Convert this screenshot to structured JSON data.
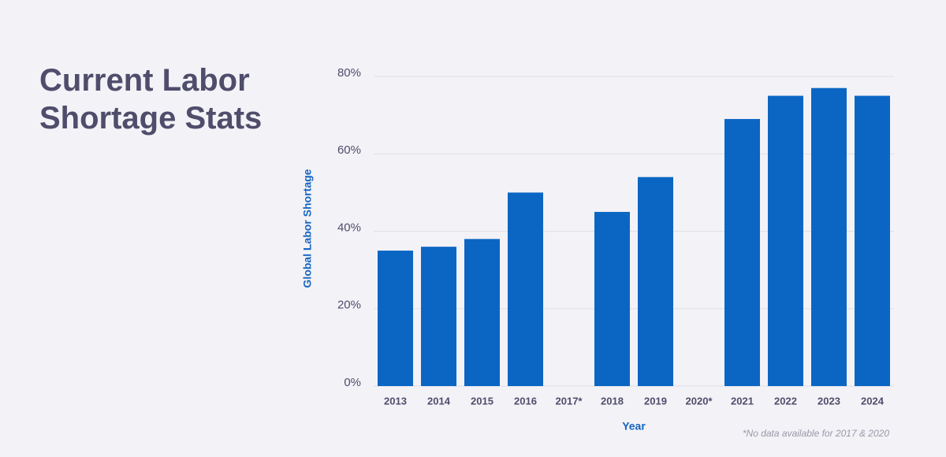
{
  "chart_data": {
    "type": "bar",
    "title": "Current Labor Shortage Stats",
    "x_label": "Year",
    "y_label": "Global Labor Shortage",
    "note": "*No data available for 2017 & 2020",
    "categories": [
      "2013",
      "2014",
      "2015",
      "2016",
      "2017*",
      "2018",
      "2019",
      "2020*",
      "2021",
      "2022",
      "2023",
      "2024"
    ],
    "values": [
      35,
      36,
      38,
      50,
      null,
      45,
      54,
      null,
      69,
      75,
      77,
      75
    ],
    "color": "#0b66c3",
    "ylim": [
      0,
      80
    ],
    "yticks": [
      {
        "value": 0,
        "label": "0%"
      },
      {
        "value": 20,
        "label": "20%"
      },
      {
        "value": 40,
        "label": "40%"
      },
      {
        "value": 60,
        "label": "60%"
      },
      {
        "value": 80,
        "label": "80%"
      }
    ],
    "grid": true
  }
}
